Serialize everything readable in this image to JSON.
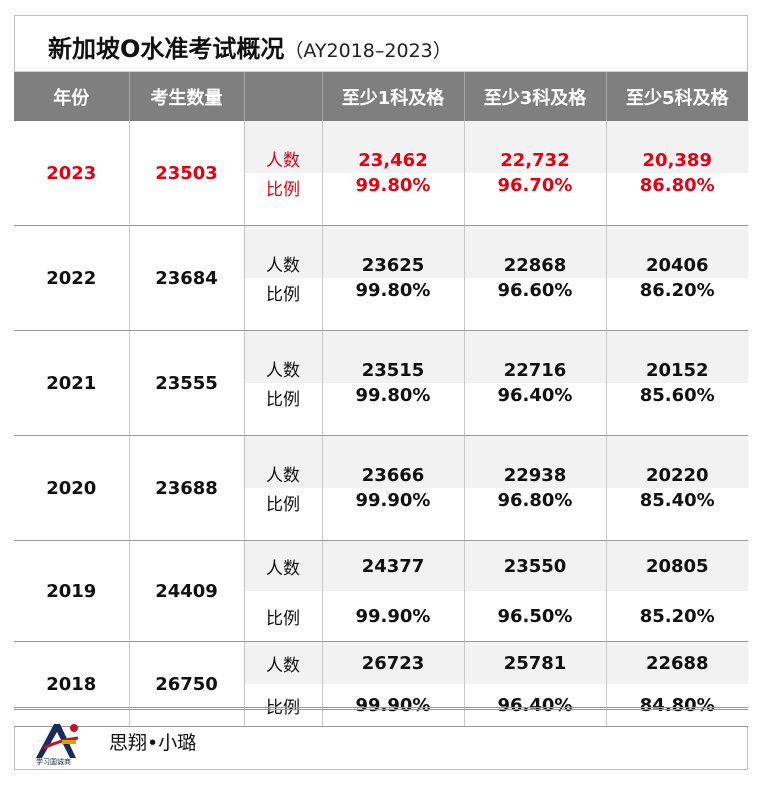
{
  "title": "新加坡O水准考试概况",
  "subtitle": "（AY2018–2023）",
  "headers": [
    "年份",
    "考生数量",
    "",
    "至少1科及格",
    "至少3科及格",
    "至少5科及格"
  ],
  "labels": {
    "count": "人数",
    "ratio": "比例"
  },
  "rows": [
    {
      "year": "2023",
      "candidates": "23503",
      "counts": [
        "23,462",
        "22,732",
        "20,389"
      ],
      "ratios": [
        "99.80%",
        "96.70%",
        "86.80%"
      ]
    },
    {
      "year": "2022",
      "candidates": "23684",
      "counts": [
        "23625",
        "22868",
        "20406"
      ],
      "ratios": [
        "99.80%",
        "96.60%",
        "86.20%"
      ]
    },
    {
      "year": "2021",
      "candidates": "23555",
      "counts": [
        "23515",
        "22716",
        "20152"
      ],
      "ratios": [
        "99.80%",
        "96.40%",
        "85.60%"
      ]
    },
    {
      "year": "2020",
      "candidates": "23688",
      "counts": [
        "23666",
        "22938",
        "20220"
      ],
      "ratios": [
        "99.90%",
        "96.80%",
        "85.40%"
      ]
    },
    {
      "year": "2019",
      "candidates": "24409",
      "counts": [
        "24377",
        "23550",
        "20805"
      ],
      "ratios": [
        "99.90%",
        "96.50%",
        "85.20%"
      ]
    },
    {
      "year": "2018",
      "candidates": "26750",
      "counts": [
        "26723",
        "25781",
        "22688"
      ],
      "ratios": [
        "99.90%",
        "96.40%",
        "84.80%"
      ]
    }
  ],
  "footer": {
    "logo_text": "学习国诚商",
    "author": "思翔•小璐"
  },
  "colors": {
    "header_bg": "#7f7f7f",
    "highlight": "#e60012",
    "stripe": "#f2f2f2"
  }
}
